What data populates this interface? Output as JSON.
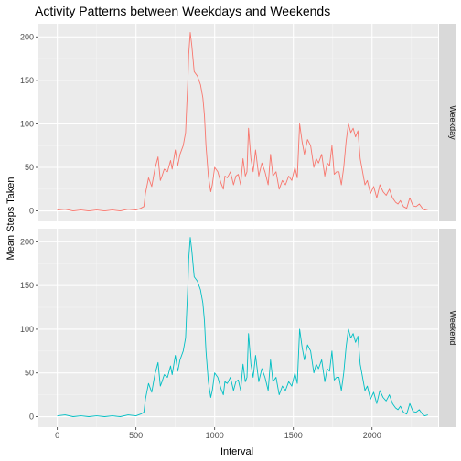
{
  "chart_data": {
    "type": "line",
    "title": "Activity Patterns between Weekdays and Weekends",
    "xlabel": "Interval",
    "ylabel": "Mean Steps Taken",
    "xlim": [
      -120,
      2420
    ],
    "ylim": [
      -12,
      215
    ],
    "x_ticks": [
      0,
      500,
      1000,
      1500,
      2000
    ],
    "y_ticks": [
      0,
      50,
      100,
      150,
      200
    ],
    "grid": true,
    "legend": "none",
    "panels": [
      {
        "strip": "Weekday",
        "color": "#F8766D",
        "x": [
          0,
          50,
          100,
          150,
          200,
          250,
          300,
          350,
          400,
          450,
          500,
          530,
          550,
          560,
          580,
          600,
          620,
          640,
          655,
          665,
          680,
          700,
          720,
          730,
          750,
          765,
          780,
          800,
          815,
          820,
          830,
          835,
          845,
          855,
          870,
          890,
          910,
          925,
          935,
          945,
          960,
          975,
          985,
          1000,
          1020,
          1040,
          1055,
          1065,
          1080,
          1100,
          1120,
          1135,
          1150,
          1165,
          1180,
          1195,
          1205,
          1215,
          1230,
          1245,
          1260,
          1280,
          1300,
          1320,
          1340,
          1355,
          1370,
          1390,
          1410,
          1430,
          1450,
          1470,
          1490,
          1510,
          1525,
          1540,
          1555,
          1570,
          1590,
          1610,
          1630,
          1645,
          1660,
          1680,
          1700,
          1715,
          1730,
          1745,
          1760,
          1775,
          1790,
          1805,
          1820,
          1835,
          1850,
          1865,
          1880,
          1895,
          1910,
          1925,
          1940,
          1955,
          1970,
          1990,
          2010,
          2030,
          2050,
          2070,
          2090,
          2110,
          2130,
          2150,
          2165,
          2180,
          2200,
          2220,
          2240,
          2260,
          2280,
          2300,
          2320,
          2335,
          2355
        ],
        "y": [
          1,
          2,
          0,
          1,
          0,
          1,
          0,
          1,
          0,
          2,
          1,
          3,
          5,
          20,
          38,
          28,
          48,
          62,
          35,
          40,
          48,
          45,
          58,
          48,
          70,
          52,
          65,
          75,
          90,
          110,
          150,
          180,
          205,
          190,
          160,
          155,
          145,
          130,
          110,
          75,
          40,
          22,
          30,
          50,
          45,
          32,
          25,
          40,
          38,
          45,
          30,
          40,
          42,
          30,
          60,
          40,
          45,
          95,
          60,
          45,
          70,
          40,
          55,
          45,
          30,
          65,
          40,
          45,
          25,
          35,
          30,
          40,
          35,
          50,
          38,
          100,
          80,
          65,
          82,
          75,
          50,
          60,
          55,
          65,
          40,
          55,
          52,
          75,
          42,
          45,
          45,
          30,
          50,
          80,
          100,
          90,
          95,
          85,
          92,
          60,
          45,
          30,
          35,
          20,
          28,
          15,
          30,
          22,
          18,
          25,
          15,
          10,
          8,
          12,
          5,
          3,
          15,
          6,
          5,
          8,
          3,
          1,
          2
        ]
      },
      {
        "strip": "Weekend",
        "color": "#00BFC4",
        "x": [
          0,
          50,
          100,
          150,
          200,
          250,
          300,
          350,
          400,
          450,
          500,
          530,
          550,
          560,
          580,
          600,
          620,
          640,
          655,
          665,
          680,
          700,
          720,
          730,
          750,
          765,
          780,
          800,
          815,
          820,
          830,
          835,
          845,
          855,
          870,
          890,
          910,
          925,
          935,
          945,
          960,
          975,
          985,
          1000,
          1020,
          1040,
          1055,
          1065,
          1080,
          1100,
          1120,
          1135,
          1150,
          1165,
          1180,
          1195,
          1205,
          1215,
          1230,
          1245,
          1260,
          1280,
          1300,
          1320,
          1340,
          1355,
          1370,
          1390,
          1410,
          1430,
          1450,
          1470,
          1490,
          1510,
          1525,
          1540,
          1555,
          1570,
          1590,
          1610,
          1630,
          1645,
          1660,
          1680,
          1700,
          1715,
          1730,
          1745,
          1760,
          1775,
          1790,
          1805,
          1820,
          1835,
          1850,
          1865,
          1880,
          1895,
          1910,
          1925,
          1940,
          1955,
          1970,
          1990,
          2010,
          2030,
          2050,
          2070,
          2090,
          2110,
          2130,
          2150,
          2165,
          2180,
          2200,
          2220,
          2240,
          2260,
          2280,
          2300,
          2320,
          2335,
          2355
        ],
        "y": [
          1,
          2,
          0,
          1,
          0,
          1,
          0,
          1,
          0,
          2,
          1,
          3,
          5,
          20,
          38,
          28,
          48,
          62,
          35,
          40,
          48,
          45,
          58,
          48,
          70,
          52,
          65,
          75,
          90,
          110,
          150,
          180,
          205,
          190,
          160,
          155,
          145,
          130,
          110,
          75,
          40,
          22,
          30,
          50,
          45,
          32,
          25,
          40,
          38,
          45,
          30,
          40,
          42,
          30,
          60,
          40,
          45,
          95,
          60,
          45,
          70,
          40,
          55,
          45,
          30,
          65,
          40,
          45,
          25,
          35,
          30,
          40,
          35,
          50,
          38,
          100,
          80,
          65,
          82,
          75,
          50,
          60,
          55,
          65,
          40,
          55,
          52,
          75,
          42,
          45,
          45,
          30,
          50,
          80,
          100,
          90,
          95,
          85,
          92,
          60,
          45,
          30,
          35,
          20,
          28,
          15,
          30,
          22,
          18,
          25,
          15,
          10,
          8,
          12,
          5,
          3,
          15,
          6,
          5,
          8,
          3,
          1,
          2
        ]
      }
    ]
  }
}
